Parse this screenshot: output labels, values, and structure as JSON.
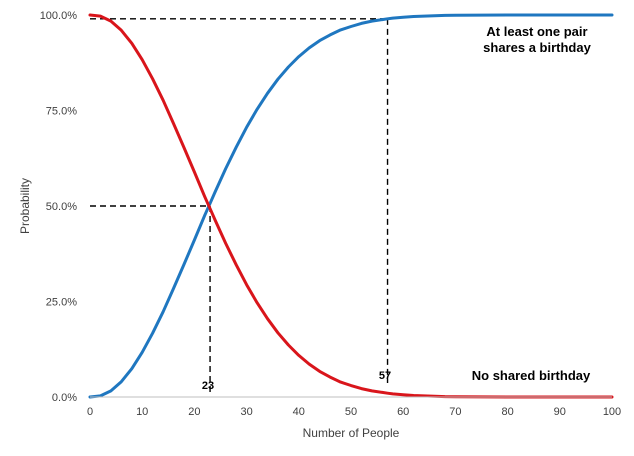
{
  "chart_data": {
    "type": "line",
    "title": "",
    "xlabel": "Number of People",
    "ylabel": "Probability",
    "xlim": [
      0,
      100
    ],
    "ylim": [
      0,
      1
    ],
    "x_ticks": [
      "0",
      "10",
      "20",
      "30",
      "40",
      "50",
      "60",
      "70",
      "80",
      "90",
      "100"
    ],
    "y_ticks": [
      "0.0%",
      "25.0%",
      "50.0%",
      "75.0%",
      "100.0%"
    ],
    "grid": false,
    "legend": "none",
    "x": [
      0,
      2,
      4,
      6,
      8,
      10,
      12,
      14,
      16,
      18,
      20,
      22,
      23,
      24,
      26,
      28,
      30,
      32,
      34,
      36,
      38,
      40,
      42,
      44,
      46,
      48,
      50,
      52,
      54,
      56,
      57,
      58,
      60,
      62,
      64,
      66,
      68,
      70,
      75,
      80,
      85,
      90,
      95,
      100
    ],
    "series": [
      {
        "name": "At least one pair shares a birthday",
        "color": "#1f77c0",
        "values": [
          0.0,
          0.003,
          0.016,
          0.04,
          0.074,
          0.117,
          0.167,
          0.223,
          0.284,
          0.347,
          0.411,
          0.476,
          0.507,
          0.538,
          0.598,
          0.654,
          0.706,
          0.753,
          0.795,
          0.832,
          0.864,
          0.891,
          0.914,
          0.933,
          0.948,
          0.961,
          0.97,
          0.978,
          0.984,
          0.988,
          0.99,
          0.992,
          0.994,
          0.996,
          0.997,
          0.998,
          0.999,
          0.9992,
          0.9997,
          0.9999,
          1.0,
          1.0,
          1.0,
          1.0
        ]
      },
      {
        "name": "No shared birthday",
        "color": "#d9151b",
        "values": [
          1.0,
          0.997,
          0.984,
          0.96,
          0.926,
          0.883,
          0.833,
          0.777,
          0.716,
          0.653,
          0.589,
          0.524,
          0.493,
          0.462,
          0.402,
          0.346,
          0.294,
          0.247,
          0.205,
          0.168,
          0.136,
          0.109,
          0.086,
          0.067,
          0.052,
          0.039,
          0.03,
          0.022,
          0.016,
          0.012,
          0.01,
          0.008,
          0.006,
          0.004,
          0.003,
          0.002,
          0.001,
          0.0008,
          0.0003,
          0.0001,
          0.0,
          0.0,
          0.0,
          0.0
        ]
      }
    ],
    "reference_lines": [
      {
        "x": 23,
        "y": 0.5,
        "label": "23"
      },
      {
        "x": 57,
        "y": 0.99,
        "label": "57"
      }
    ],
    "annotations": {
      "upper_line1": "At least one pair",
      "upper_line2": "shares a birthday",
      "lower": "No shared birthday"
    }
  }
}
